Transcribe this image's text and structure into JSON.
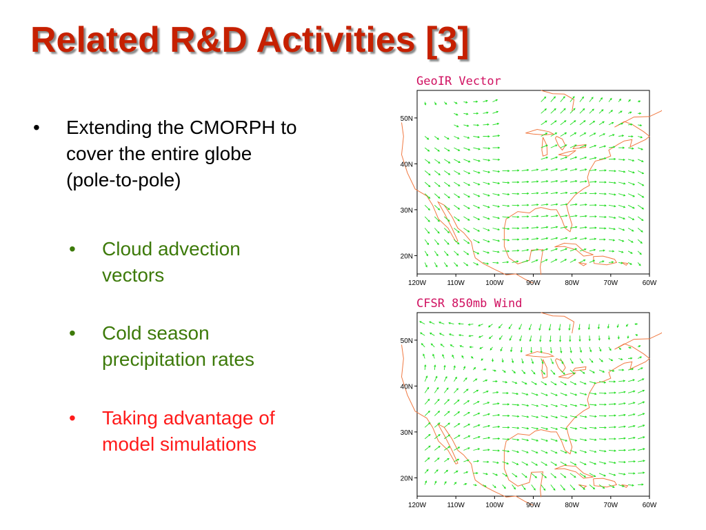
{
  "slide": {
    "title": "Related R&D Activities [3]",
    "bullets": [
      {
        "marker": "•",
        "text": "Extending the CMORPH to\ncover the entire globe\n(pole-to-pole)",
        "color": "#000000"
      },
      {
        "marker": "•",
        "text": "Cloud advection\nvectors",
        "color": "#3d7a0a"
      },
      {
        "marker": "•",
        "text": "Cold season\nprecipitation rates",
        "color": "#3d7a0a"
      },
      {
        "marker": "•",
        "text": "Taking advantage of\nmodel simulations",
        "color": "#ff1b1b"
      }
    ]
  },
  "maps": [
    {
      "title": "GeoIR Vector",
      "lat_labels": [
        "50N",
        "40N",
        "30N",
        "20N"
      ],
      "lon_labels": [
        "120W",
        "110W",
        "100W",
        "90W",
        "80W",
        "70W",
        "60W"
      ]
    },
    {
      "title": "CFSR 850mb Wind",
      "lat_labels": [
        "50N",
        "40N",
        "30N",
        "20N"
      ],
      "lon_labels": [
        "120W",
        "110W",
        "100W",
        "90W",
        "80W",
        "70W",
        "60W"
      ]
    }
  ],
  "colors": {
    "title": "#c62000",
    "vector": "#22dd22",
    "coastline": "#f07840",
    "map_title": "#d01060"
  }
}
